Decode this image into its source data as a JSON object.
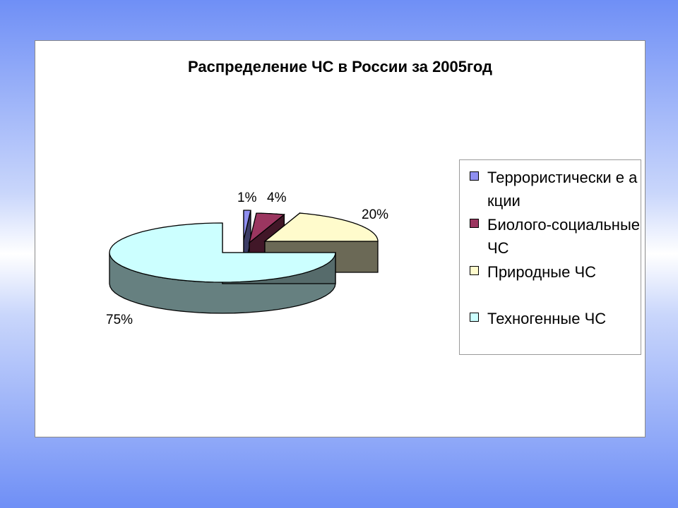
{
  "chart_data": {
    "type": "pie",
    "title": "Распределение ЧС в России за 2005год",
    "categories": [
      "Террористически е акции",
      "Биолого-социальные ЧС",
      "Природные ЧС",
      "Техногенные ЧС"
    ],
    "values": [
      1,
      4,
      20,
      75
    ],
    "value_labels": [
      "1%",
      "4%",
      "20%",
      "75%"
    ],
    "colors": [
      "#8f8ff0",
      "#9b3660",
      "#fffbcc",
      "#ccffff"
    ],
    "legend_placement": "right",
    "exploded": true,
    "three_d": true
  }
}
